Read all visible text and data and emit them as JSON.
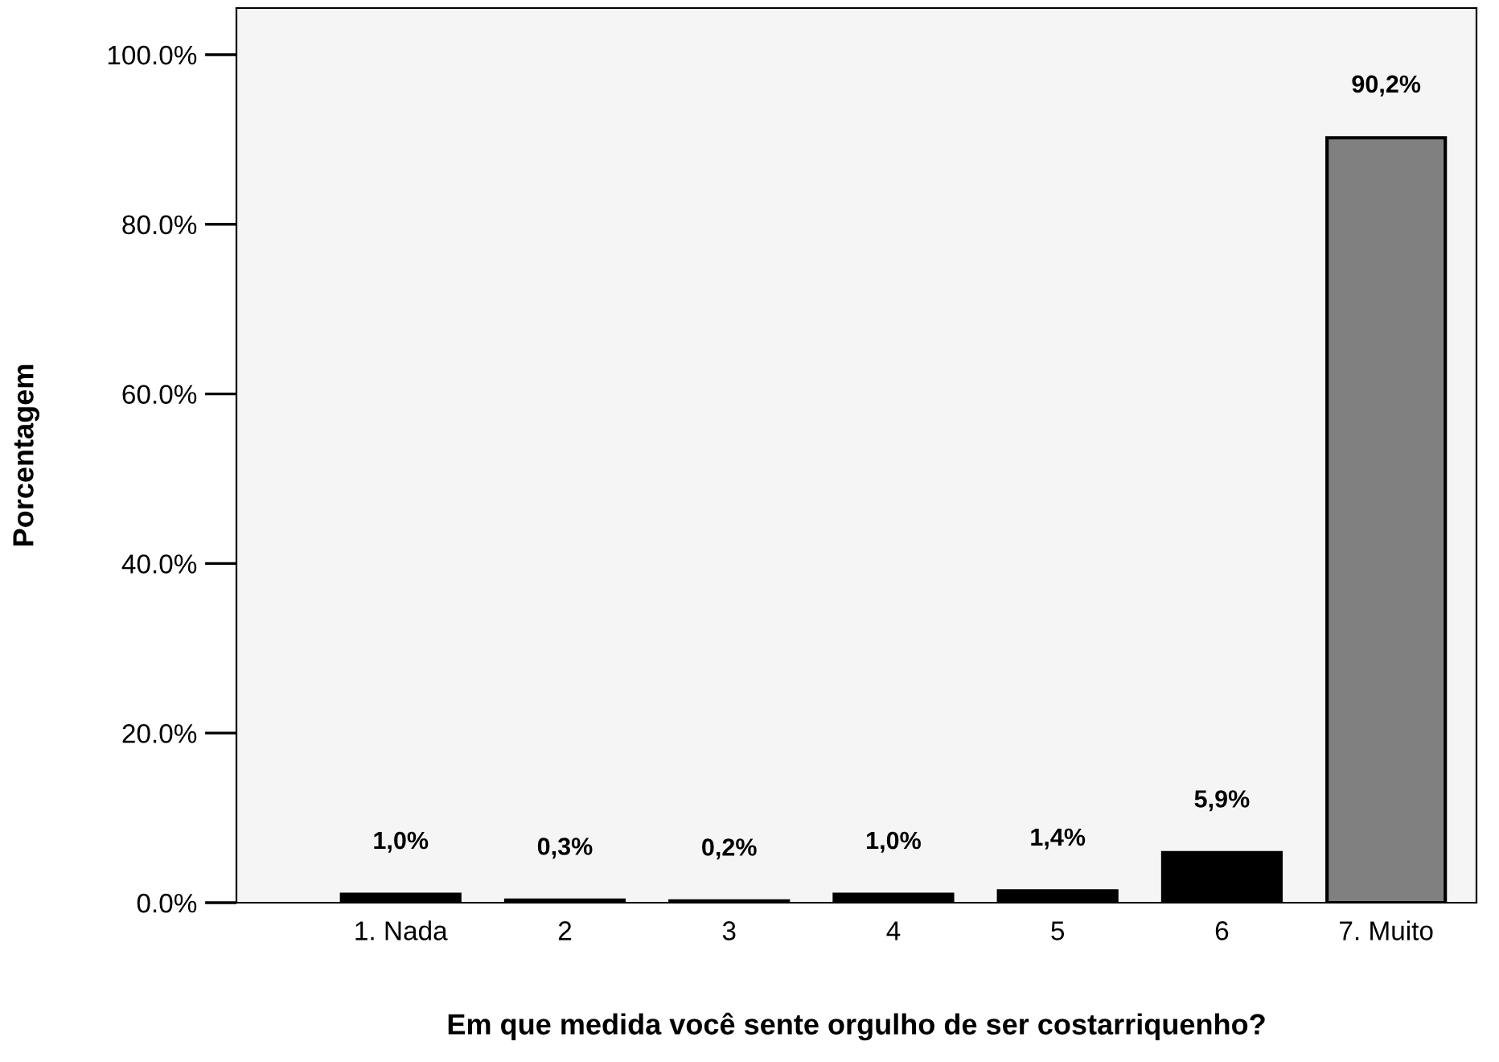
{
  "chart_data": {
    "type": "bar",
    "xlabel": "Em que medida você sente orgulho de ser costarriquenho?",
    "ylabel": "Porcentagem",
    "categories": [
      "1. Nada",
      "2",
      "3",
      "4",
      "5",
      "6",
      "7. Muito"
    ],
    "values": [
      1.0,
      0.3,
      0.2,
      1.0,
      1.4,
      5.9,
      90.2
    ],
    "colors": [
      "#000000",
      "#000000",
      "#000000",
      "#000000",
      "#000000",
      "#000000",
      "#808080"
    ],
    "value_labels": [
      "1,0%",
      "0,3%",
      "0,2%",
      "1,0%",
      "1,4%",
      "5,9%",
      "90,2%"
    ],
    "ylim": [
      0,
      105.5
    ],
    "yticks": [
      {
        "value": 0,
        "label": "0.0%"
      },
      {
        "value": 20,
        "label": "20.0%"
      },
      {
        "value": 40,
        "label": "40.0%"
      },
      {
        "value": 60,
        "label": "60.0%"
      },
      {
        "value": 80,
        "label": "80.0%"
      },
      {
        "value": 100,
        "label": "100.0%"
      }
    ],
    "grid": false,
    "legend": false
  }
}
